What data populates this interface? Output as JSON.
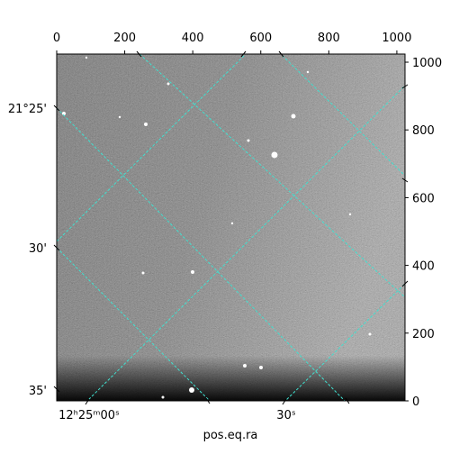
{
  "chart_data": {
    "type": "image",
    "xlabel": "pos.eq.ra",
    "xlim": [
      0,
      1024
    ],
    "xticks": [
      0,
      200,
      400,
      600,
      800,
      1000
    ],
    "ylim": [
      0,
      1024
    ],
    "yticks": [
      0,
      200,
      400,
      600,
      800,
      1000
    ],
    "world_y_labels": [
      "21°25'",
      "30'",
      "35'"
    ],
    "world_x_labels": [
      "12ʰ25ᵐ00ˢ",
      "30ˢ"
    ],
    "grid_color": "#40e0d0"
  }
}
